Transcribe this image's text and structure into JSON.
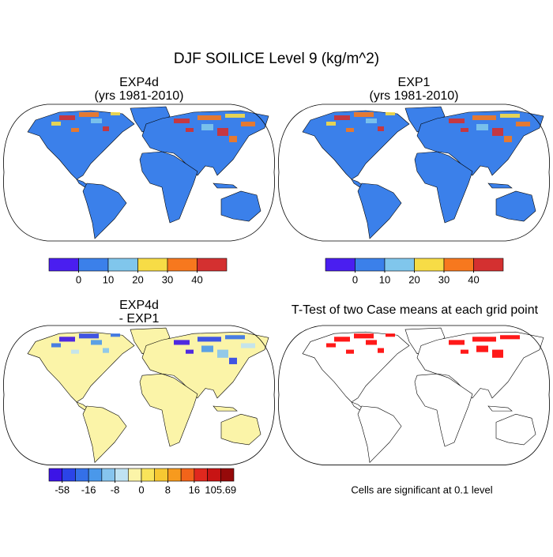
{
  "title": "DJF SOILICE Level 9 (kg/m^2)",
  "panels": [
    {
      "title": "EXP4d",
      "subtitle": "(yrs 1981-2010)",
      "land_color": "#3b80ea",
      "colorbar": {
        "colors": [
          "#4a1ef0",
          "#3b80ea",
          "#80c6ec",
          "#f7dc46",
          "#f7781e",
          "#d43030"
        ],
        "ticks": [
          0,
          10,
          20,
          30,
          40
        ]
      }
    },
    {
      "title": "EXP1",
      "subtitle": "(yrs 1981-2010)",
      "land_color": "#3b80ea",
      "colorbar": {
        "colors": [
          "#4a1ef0",
          "#3b80ea",
          "#80c6ec",
          "#f7dc46",
          "#f7781e",
          "#d43030"
        ],
        "ticks": [
          0,
          10,
          20,
          30,
          40
        ]
      }
    },
    {
      "title": "EXP4d",
      "subtitle": "- EXP1",
      "land_color": "#fbf4a8",
      "colorbar": {
        "colors": [
          "#3c14e6",
          "#2b44e8",
          "#3470e8",
          "#4a98ea",
          "#86c4ee",
          "#bfe2f2",
          "#fbf4a8",
          "#f9e45a",
          "#f7c832",
          "#f79a1e",
          "#f2641a",
          "#e0281e",
          "#c81414",
          "#960a0a"
        ],
        "ticks": [
          -58,
          -16,
          -8,
          0,
          8,
          16,
          105.69
        ]
      }
    },
    {
      "title": "T-Test of two Case means at each grid point",
      "note": "Cells are significant at 0.1 level",
      "land_color": "#ffffff",
      "color": "#ff0000"
    }
  ]
}
